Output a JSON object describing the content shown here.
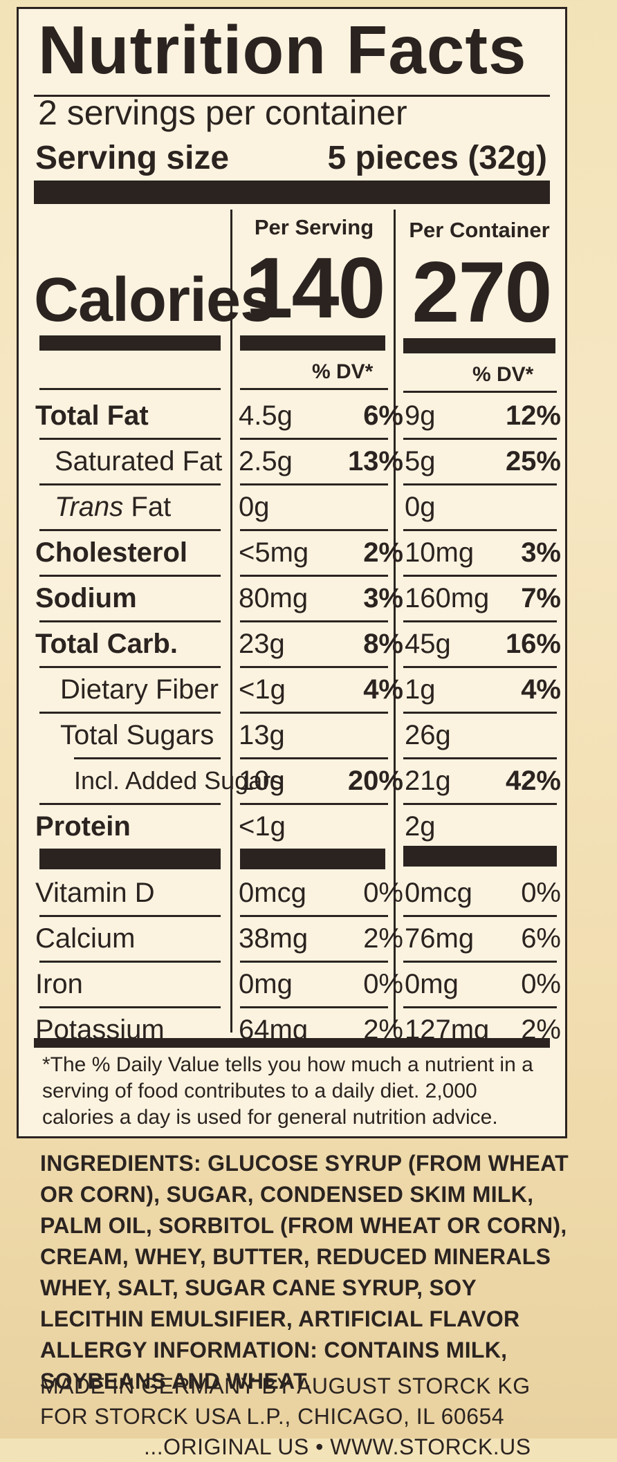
{
  "label": {
    "title": "Nutrition Facts",
    "servings": "2 servings per container",
    "serving_size_label": "Serving size",
    "serving_size_value": "5 pieces (32g)",
    "col1_header": "Per Serving",
    "col2_header": "Per Container",
    "calories_label": "Calories",
    "calories_serving": "140",
    "calories_container": "270",
    "dv_header": "% DV*",
    "nutrients": [
      {
        "name": "Total Fat",
        "v1": "4.5g",
        "p1": "6%",
        "v2": "9g",
        "p2": "12%"
      },
      {
        "name": "Saturated Fat",
        "v1": "2.5g",
        "p1": "13%",
        "v2": "5g",
        "p2": "25%"
      },
      {
        "name_italic": "Trans",
        "name_rest": " Fat",
        "v1": "0g",
        "p1": "",
        "v2": "0g",
        "p2": ""
      },
      {
        "name": "Cholesterol",
        "v1": "<5mg",
        "p1": "2%",
        "v2": "10mg",
        "p2": "3%"
      },
      {
        "name": "Sodium",
        "v1": "80mg",
        "p1": "3%",
        "v2": "160mg",
        "p2": "7%"
      },
      {
        "name": "Total Carb.",
        "v1": "23g",
        "p1": "8%",
        "v2": "45g",
        "p2": "16%"
      },
      {
        "name": "Dietary Fiber",
        "v1": "<1g",
        "p1": "4%",
        "v2": "1g",
        "p2": "4%"
      },
      {
        "name": "Total Sugars",
        "v1": "13g",
        "p1": "",
        "v2": "26g",
        "p2": ""
      },
      {
        "name": "Incl. Added Sugars",
        "v1": "10g",
        "p1": "20%",
        "v2": "21g",
        "p2": "42%"
      },
      {
        "name": "Protein",
        "v1": "<1g",
        "p1": "",
        "v2": "2g",
        "p2": ""
      }
    ],
    "vitamins": [
      {
        "name": "Vitamin D",
        "v1": "0mcg",
        "p1": "0%",
        "v2": "0mcg",
        "p2": "0%"
      },
      {
        "name": "Calcium",
        "v1": "38mg",
        "p1": "2%",
        "v2": "76mg",
        "p2": "6%"
      },
      {
        "name": "Iron",
        "v1": "0mg",
        "p1": "0%",
        "v2": "0mg",
        "p2": "0%"
      },
      {
        "name": "Potassium",
        "v1": "64mg",
        "p1": "2%",
        "v2": "127mg",
        "p2": "2%"
      }
    ],
    "footnote": "*The % Daily Value tells you how much a nutrient in a serving of food contributes to a daily diet. 2,000 calories a day is used for general nutrition advice."
  },
  "ingredients": "INGREDIENTS: GLUCOSE SYRUP (FROM WHEAT OR CORN), SUGAR, CONDENSED SKIM MILK, PALM OIL, SORBITOL (FROM WHEAT OR CORN), CREAM, WHEY, BUTTER, REDUCED MINERALS WHEY, SALT, SUGAR CANE SYRUP, SOY LECITHIN EMULSIFIER, ARTIFICIAL FLAVOR",
  "allergy": "ALLERGY INFORMATION: CONTAINS MILK, SOYBEANS AND WHEAT.",
  "made_in_1": "MADE IN GERMANY BY AUGUST STORCK KG",
  "made_in_2": "FOR STORCK USA L.P., CHICAGO, IL 60654",
  "made_in_3": "...ORIGINAL US • WWW.STORCK.US"
}
